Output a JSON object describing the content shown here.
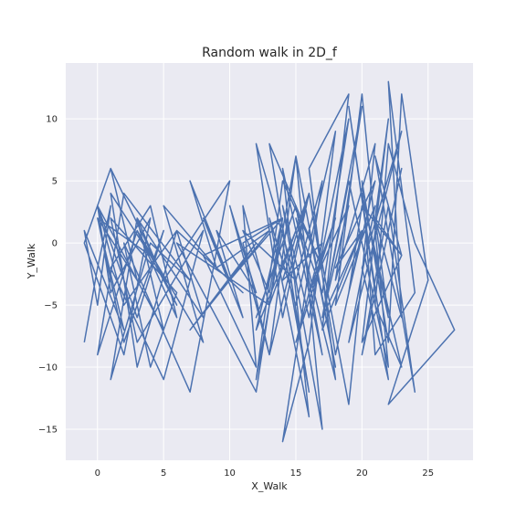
{
  "chart_data": {
    "type": "line",
    "title": "Random walk in 2D_f",
    "xlabel": "X_Walk",
    "ylabel": "Y_Walk",
    "xlim": [
      -2.4,
      28.4
    ],
    "ylim": [
      -17.5,
      14.5
    ],
    "xticks": [
      0,
      5,
      10,
      15,
      20,
      25
    ],
    "yticks": [
      -15,
      -10,
      -5,
      0,
      5,
      10
    ],
    "grid": true,
    "style": "seaborn-darkgrid",
    "colors": {
      "line": "#4c72b0",
      "background": "#eaeaf2",
      "grid": "#ffffff"
    },
    "series": [
      {
        "x": [
          -1,
          0,
          1,
          0,
          -1,
          2,
          0,
          3,
          1,
          -1,
          2,
          4,
          1,
          0,
          3,
          5,
          2,
          0,
          4,
          1,
          3,
          6,
          2,
          0,
          5,
          3,
          1,
          4,
          7,
          2,
          0,
          3,
          6,
          4,
          1,
          5,
          8,
          3,
          1,
          6,
          4,
          2,
          7,
          10,
          5,
          3,
          8,
          6,
          11,
          9,
          13,
          7,
          12,
          10,
          14,
          8,
          12,
          11,
          13,
          6,
          10,
          12,
          14,
          13,
          11,
          15,
          12,
          14,
          16,
          13,
          15,
          12,
          14,
          17,
          13,
          16,
          14,
          12,
          15,
          17,
          14,
          16,
          13,
          15,
          18,
          16,
          14,
          17,
          15,
          16,
          18,
          15,
          17,
          14,
          16,
          19,
          17,
          15,
          18,
          16,
          19,
          17,
          20,
          18,
          16,
          19,
          21,
          18,
          20,
          17,
          19,
          22,
          20,
          18,
          21,
          19,
          23,
          20,
          22,
          19,
          21,
          23,
          20,
          22,
          24,
          21,
          23,
          20,
          22,
          21,
          23,
          22,
          24,
          21,
          20,
          22,
          23,
          25,
          22,
          27,
          24,
          22,
          21,
          23,
          20,
          22,
          21,
          23,
          20,
          19,
          21,
          18,
          20,
          17,
          19,
          16,
          18,
          15,
          17,
          14,
          16,
          13,
          15,
          12,
          14,
          11,
          13,
          10,
          12,
          9,
          11,
          8,
          10,
          7,
          9,
          5,
          8,
          3,
          6,
          1
        ],
        "y": [
          -8,
          -2,
          3,
          -5,
          1,
          -7,
          2,
          -3,
          6,
          0,
          -9,
          2,
          -4,
          3,
          -6,
          1,
          -8,
          2,
          -1,
          4,
          -10,
          1,
          -5,
          3,
          -7,
          2,
          -11,
          0,
          -3,
          4,
          -9,
          1,
          -6,
          3,
          -2,
          -11,
          1,
          -8,
          2,
          -4,
          -10,
          0,
          -12,
          5,
          -3,
          2,
          -6,
          1,
          -4,
          -2,
          1,
          -7,
          0,
          -3,
          2,
          -1,
          -10,
          3,
          -5,
          0,
          -8,
          -12,
          2,
          -4,
          1,
          -3,
          8,
          -6,
          4,
          -9,
          7,
          -11,
          5,
          -2,
          8,
          -12,
          0,
          -6,
          3,
          -9,
          6,
          -14,
          2,
          -5,
          9,
          -8,
          -16,
          5,
          -3,
          1,
          -10,
          7,
          -15,
          3,
          -6,
          10,
          -4,
          2,
          -11,
          6,
          12,
          -7,
          1,
          -9,
          4,
          -13,
          8,
          -3,
          11,
          -6,
          5,
          -10,
          12,
          -5,
          3,
          -8,
          9,
          -2,
          -11,
          11,
          -4,
          6,
          -9,
          3,
          -12,
          7,
          -1,
          -8,
          10,
          2,
          -6,
          13,
          -4,
          -9,
          5,
          -8,
          12,
          -3,
          -13,
          -7,
          0,
          8,
          -5,
          -10,
          4,
          -6,
          2,
          -1,
          3,
          -4,
          5,
          -2,
          1,
          -6,
          3,
          -4,
          2,
          -8,
          0,
          -3,
          4,
          -5,
          1,
          -7,
          2,
          0,
          -9,
          3,
          -4,
          1,
          -6,
          2,
          -3,
          5,
          -2,
          3,
          -8,
          1,
          -5,
          6
        ]
      }
    ]
  }
}
